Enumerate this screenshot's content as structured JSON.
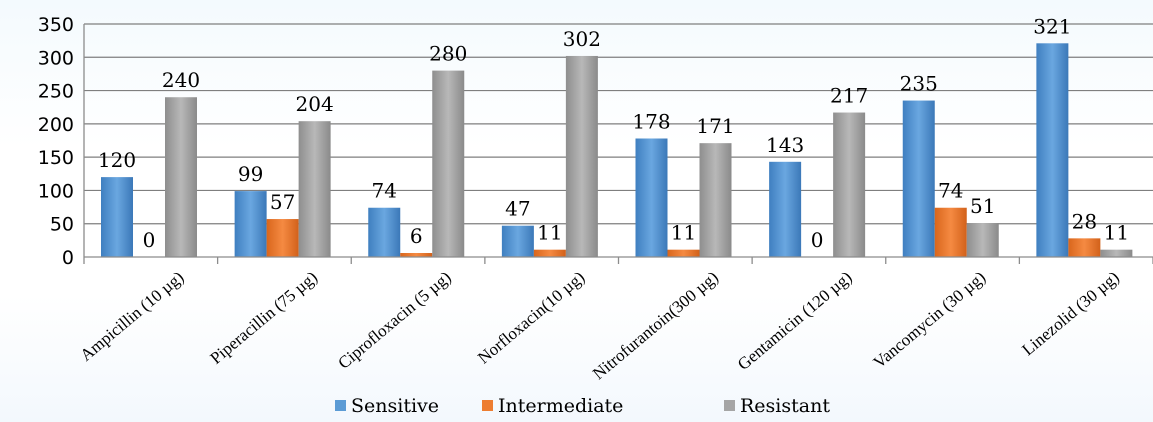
{
  "chart_data": {
    "type": "bar",
    "title": "",
    "xlabel": "",
    "ylabel": "",
    "ylim": [
      0,
      350
    ],
    "yticks": [
      0,
      50,
      100,
      150,
      200,
      250,
      300,
      350
    ],
    "grid": true,
    "legend_position": "bottom",
    "categories": [
      "Ampicillin (10 µg)",
      "Piperacillin (75 µg)",
      "Ciprofloxacin (5 µg)",
      "Norfloxacin(10 µg)",
      "Nitrofurantoin(300 µg)",
      "Gentamicin (120 µg)",
      "Vancomycin (30 µg)",
      "Linezolid (30 µg)"
    ],
    "series": [
      {
        "name": "Sensitive",
        "color": "#5b9bd5",
        "values": [
          120,
          99,
          74,
          47,
          178,
          143,
          235,
          321
        ]
      },
      {
        "name": "Intermediate",
        "color": "#ed7d31",
        "values": [
          0,
          57,
          6,
          11,
          11,
          0,
          74,
          28
        ]
      },
      {
        "name": "Resistant",
        "color": "#a5a5a5",
        "values": [
          240,
          204,
          280,
          302,
          171,
          217,
          51,
          11
        ]
      }
    ]
  }
}
